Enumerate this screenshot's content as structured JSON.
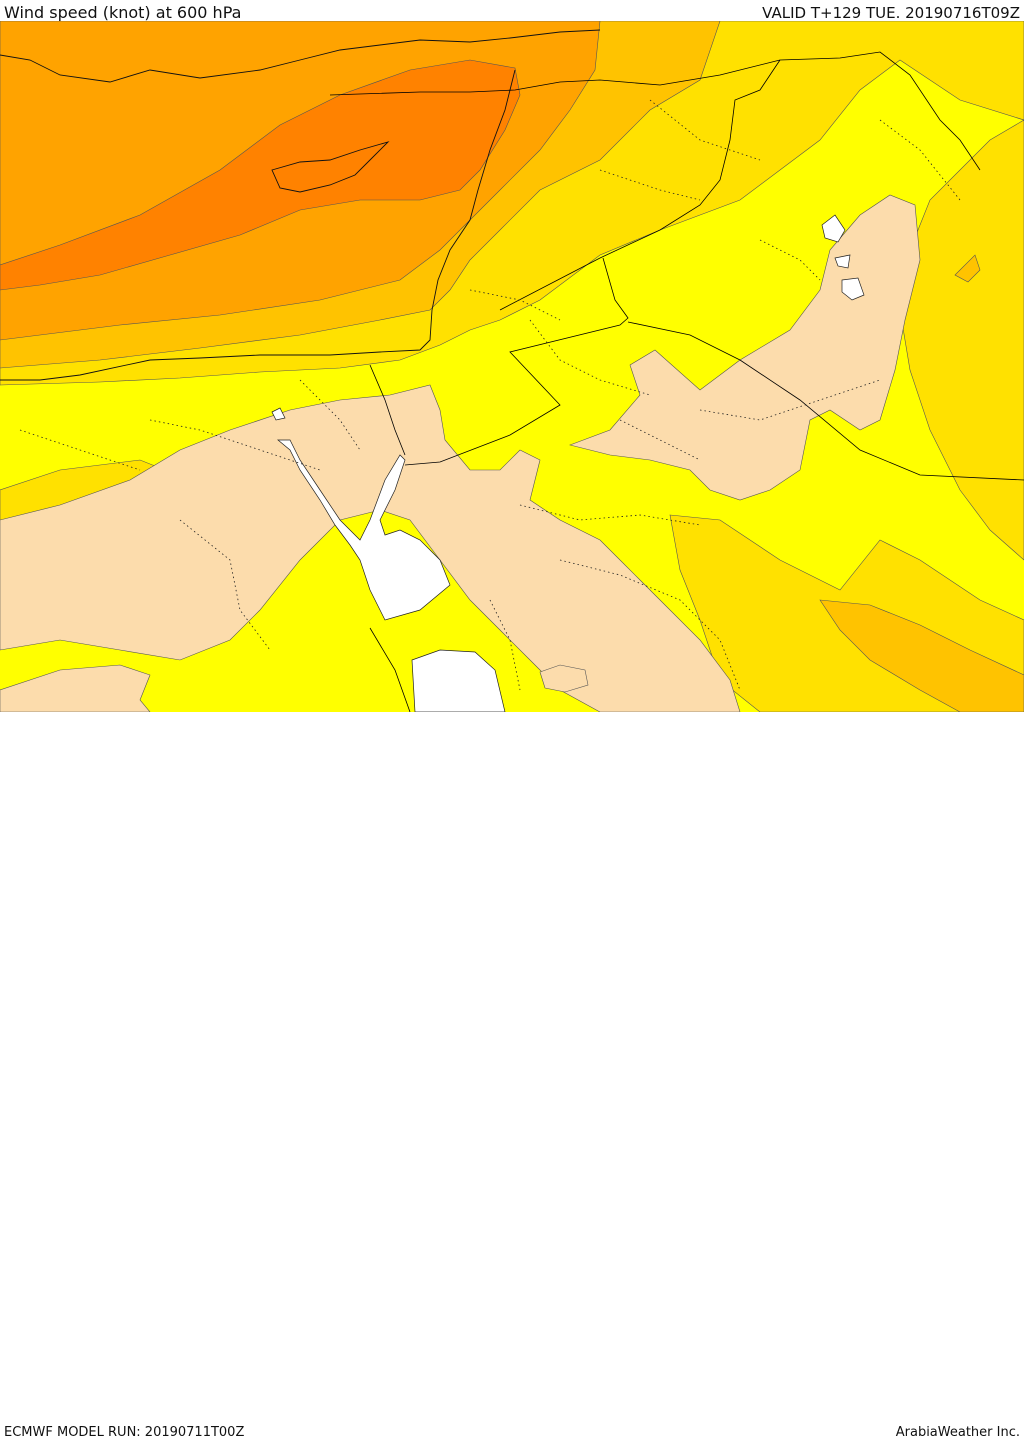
{
  "header": {
    "title": "Wind speed (knot) at 600 hPa",
    "valid": "VALID T+129 TUE. 20190716T09Z"
  },
  "footer": {
    "model_run": "ECMWF MODEL RUN: 20190711T00Z",
    "credit": "ArabiaWeather Inc."
  },
  "map": {
    "palette": {
      "lowest": "#fcdcac",
      "low": "#ffff00",
      "moderate": "#ffe100",
      "elevated": "#ffc300",
      "high": "#ffa300",
      "highest": "#ff8200",
      "water_mask": "#ffffff",
      "boundaries": "#000000"
    }
  }
}
